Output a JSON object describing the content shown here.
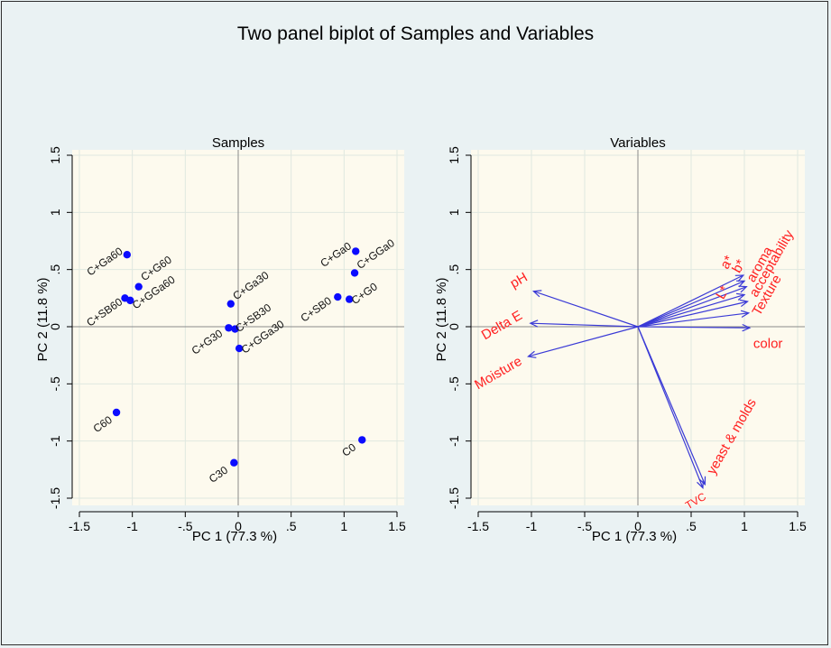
{
  "title": "Two panel biplot of Samples and Variables",
  "colors": {
    "background": "#eaf2f3",
    "plot_area": "#fdfaee",
    "grid": "#e0e8e0",
    "points": "#0b0bff",
    "arrows": "#3a3ad6",
    "variable_labels": "#ff2020",
    "axis": "#000000"
  },
  "chart_data": [
    {
      "type": "scatter",
      "title": "Samples",
      "xlabel": "PC 1 (77.3 %)",
      "ylabel": "PC 2 (11.8 %)",
      "xlim": [
        -1.5,
        1.5
      ],
      "ylim": [
        -1.5,
        1.5
      ],
      "xticks": [
        -1.5,
        -1,
        -0.5,
        0,
        0.5,
        1,
        1.5
      ],
      "xtick_labels": [
        "-1.5",
        "-1",
        "-.5",
        "0",
        ".5",
        "1",
        "1.5"
      ],
      "yticks": [
        -1.5,
        -1,
        -0.5,
        0,
        0.5,
        1,
        1.5
      ],
      "ytick_labels": [
        "-1.5",
        "-1",
        "-.5",
        "0",
        ".5",
        "1",
        "1.5"
      ],
      "grid": true,
      "reference_lines": {
        "x": 0,
        "y": 0
      },
      "points": [
        {
          "label": "C+Ga60",
          "x": -1.05,
          "y": 0.63
        },
        {
          "label": "C+G60",
          "x": -0.94,
          "y": 0.35
        },
        {
          "label": "C+SB60",
          "x": -1.07,
          "y": 0.25
        },
        {
          "label": "C+GGa60",
          "x": -1.02,
          "y": 0.23
        },
        {
          "label": "C60",
          "x": -1.15,
          "y": -0.75
        },
        {
          "label": "C+Ga30",
          "x": -0.07,
          "y": 0.2
        },
        {
          "label": "C+SB30",
          "x": -0.03,
          "y": -0.02
        },
        {
          "label": "C+G30",
          "x": -0.09,
          "y": -0.01
        },
        {
          "label": "C+GGa30",
          "x": 0.01,
          "y": -0.19
        },
        {
          "label": "C30",
          "x": -0.04,
          "y": -1.19
        },
        {
          "label": "C+Ga0",
          "x": 1.11,
          "y": 0.66
        },
        {
          "label": "C+GGa0",
          "x": 1.1,
          "y": 0.47
        },
        {
          "label": "C+SB0",
          "x": 0.94,
          "y": 0.26
        },
        {
          "label": "C+G0",
          "x": 1.05,
          "y": 0.24
        },
        {
          "label": "C0",
          "x": 1.17,
          "y": -0.99
        }
      ]
    },
    {
      "type": "biplot-vectors",
      "title": "Variables",
      "xlabel": "PC 1 (77.3 %)",
      "ylabel": "PC 2 (11.8 %)",
      "xlim": [
        -1.5,
        1.5
      ],
      "ylim": [
        -1.5,
        1.5
      ],
      "xticks": [
        -1.5,
        -1,
        -0.5,
        0,
        0.5,
        1,
        1.5
      ],
      "xtick_labels": [
        "-1.5",
        "-1",
        "-.5",
        "0",
        ".5",
        "1",
        "1.5"
      ],
      "yticks": [
        -1.5,
        -1,
        -0.5,
        0,
        0.5,
        1,
        1.5
      ],
      "ytick_labels": [
        "-1.5",
        "-1",
        "-.5",
        "0",
        ".5",
        "1",
        "1.5"
      ],
      "grid": true,
      "reference_lines": {
        "x": 0,
        "y": 0
      },
      "vectors": [
        {
          "label": "pH",
          "x": -0.98,
          "y": 0.31
        },
        {
          "label": "Delta E",
          "x": -1.01,
          "y": 0.03
        },
        {
          "label": "Moisture",
          "x": -1.03,
          "y": -0.26
        },
        {
          "label": "a*",
          "x": 0.99,
          "y": 0.45
        },
        {
          "label": "b*",
          "x": 1.0,
          "y": 0.4
        },
        {
          "label": "aroma",
          "x": 1.02,
          "y": 0.35
        },
        {
          "label": "L*",
          "x": 1.0,
          "y": 0.28
        },
        {
          "label": "acceptability",
          "x": 1.03,
          "y": 0.22
        },
        {
          "label": "Texture",
          "x": 1.04,
          "y": 0.12
        },
        {
          "label": "color",
          "x": 1.05,
          "y": -0.01
        },
        {
          "label": "yeast & molds",
          "x": 0.63,
          "y": -1.38
        },
        {
          "label": "TVC",
          "x": 0.61,
          "y": -1.41
        }
      ]
    }
  ]
}
